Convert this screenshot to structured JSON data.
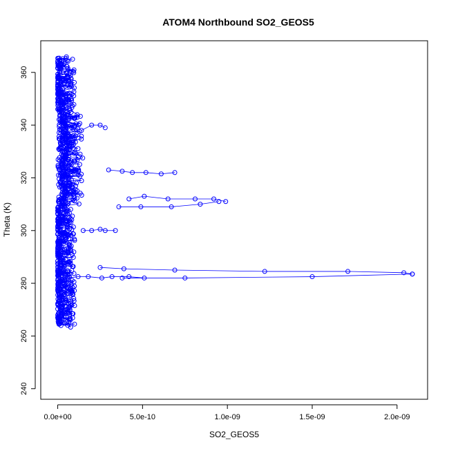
{
  "chart_data": {
    "type": "scatter",
    "title": "ATOM4 Northbound SO2_GEOS5",
    "xlabel": "SO2_GEOS5",
    "ylabel": "Theta (K)",
    "xlim": [
      -1e-10,
      2.18e-09
    ],
    "ylim": [
      236,
      372
    ],
    "x_ticks": [
      {
        "value": 0,
        "label": "0.0e+00"
      },
      {
        "value": 5e-10,
        "label": "5.0e-10"
      },
      {
        "value": 1e-09,
        "label": "1.0e-09"
      },
      {
        "value": 1.5e-09,
        "label": "1.5e-09"
      },
      {
        "value": 2e-09,
        "label": "2.0e-09"
      }
    ],
    "y_ticks": [
      {
        "value": 240,
        "label": "240"
      },
      {
        "value": 260,
        "label": "260"
      },
      {
        "value": 280,
        "label": "280"
      },
      {
        "value": 300,
        "label": "300"
      },
      {
        "value": 320,
        "label": "320"
      },
      {
        "value": 340,
        "label": "340"
      },
      {
        "value": 360,
        "label": "360"
      }
    ],
    "series_color": "#0000ff",
    "marker": "open-circle",
    "connected": true,
    "legend": "none",
    "grid": false,
    "dense_core": {
      "x_range": [
        0,
        1e-10
      ],
      "y_range": [
        264,
        365
      ]
    },
    "outlier_traces": [
      {
        "x": [
          3e-10,
          3.8e-10,
          4.4e-10,
          5.2e-10,
          6.1e-10,
          6.9e-10
        ],
        "y": [
          323,
          322.5,
          322,
          322,
          321.5,
          322
        ]
      },
      {
        "x": [
          4.2e-10,
          5.1e-10,
          6.5e-10,
          8.1e-10,
          9.2e-10,
          9.9e-10
        ],
        "y": [
          312,
          313,
          312,
          312,
          312,
          311
        ]
      },
      {
        "x": [
          3.6e-10,
          4.9e-10,
          6.7e-10,
          8.4e-10,
          9.5e-10
        ],
        "y": [
          309,
          309,
          309,
          310,
          311
        ]
      },
      {
        "x": [
          2.5e-10,
          3.9e-10,
          6.9e-10,
          1.22e-09,
          1.71e-09,
          2.04e-09,
          2.09e-09
        ],
        "y": [
          286,
          285.5,
          285,
          284.5,
          284.5,
          284,
          283.5
        ]
      },
      {
        "x": [
          3.8e-10,
          7.5e-10,
          1.5e-09,
          2.09e-09
        ],
        "y": [
          282,
          282,
          282.5,
          283.5
        ]
      },
      {
        "x": [
          6e-11,
          1.2e-10,
          1.8e-10,
          2.6e-10,
          3.2e-10,
          4.2e-10,
          5.1e-10
        ],
        "y": [
          282,
          282.5,
          282.5,
          282,
          282.5,
          282.5,
          282
        ]
      },
      {
        "x": [
          1.5e-10,
          2e-10,
          2.5e-10,
          2.8e-10,
          3.4e-10
        ],
        "y": [
          300,
          300,
          300.5,
          300,
          300
        ]
      },
      {
        "x": [
          1.4e-10,
          2e-10,
          2.5e-10,
          2.8e-10
        ],
        "y": [
          338,
          340,
          340,
          339
        ]
      }
    ]
  }
}
